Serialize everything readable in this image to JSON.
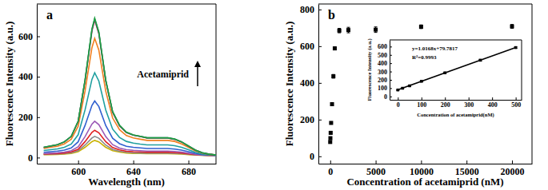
{
  "chart_data": [
    {
      "type": "line",
      "title": "a",
      "x_label": "Wavelength (nm)",
      "y_label": "Fluorescence Intensity (a.u.)",
      "annotations": [
        "Acetamiprid"
      ],
      "x": [
        575,
        580,
        585,
        590,
        595,
        600,
        605,
        610,
        612,
        615,
        620,
        625,
        630,
        635,
        640,
        645,
        650,
        655,
        660,
        665,
        670,
        675,
        680,
        685,
        690,
        695,
        700
      ],
      "series": [
        {
          "color": "#c9b200",
          "values": [
            15,
            15,
            16,
            18,
            21,
            29,
            51,
            79,
            85,
            78,
            51,
            34,
            27,
            23,
            21,
            21,
            20,
            20,
            20,
            20,
            19,
            18,
            15,
            13,
            12,
            11,
            10
          ]
        },
        {
          "color": "#8a8a8a",
          "values": [
            16,
            17,
            18,
            20,
            23,
            34,
            62,
            97,
            105,
            96,
            62,
            40,
            31,
            26,
            24,
            23,
            22,
            22,
            22,
            22,
            21,
            20,
            17,
            14,
            12,
            11,
            10
          ]
        },
        {
          "color": "#e02020",
          "values": [
            18,
            19,
            20,
            23,
            28,
            41,
            79,
            125,
            135,
            123,
            79,
            50,
            38,
            31,
            29,
            28,
            26,
            26,
            26,
            26,
            25,
            23,
            19,
            15,
            13,
            11,
            11
          ]
        },
        {
          "color": "#9b59b6",
          "values": [
            20,
            22,
            24,
            27,
            34,
            53,
            104,
            166,
            180,
            163,
            104,
            64,
            47,
            39,
            36,
            34,
            32,
            32,
            32,
            32,
            30,
            27,
            22,
            17,
            13,
            12,
            11
          ]
        },
        {
          "color": "#3060d0",
          "values": [
            26,
            29,
            32,
            37,
            48,
            78,
            159,
            258,
            280,
            253,
            159,
            96,
            69,
            56,
            51,
            48,
            45,
            45,
            45,
            45,
            42,
            37,
            29,
            21,
            15,
            13,
            11
          ]
        },
        {
          "color": "#20a0a0",
          "values": [
            35,
            39,
            43,
            51,
            67,
            113,
            236,
            387,
            420,
            379,
            236,
            141,
            100,
            80,
            72,
            67,
            63,
            63,
            63,
            63,
            59,
            51,
            39,
            26,
            18,
            14,
            12
          ]
        },
        {
          "color": "#f08020",
          "values": [
            45,
            51,
            56,
            68,
            91,
            155,
            329,
            544,
            590,
            532,
            329,
            196,
            138,
            109,
            97,
            91,
            85,
            85,
            85,
            85,
            80,
            68,
            51,
            33,
            22,
            16,
            13
          ]
        },
        {
          "color": "#e03050",
          "values": [
            50,
            57,
            64,
            77,
            104,
            178,
            379,
            626,
            680,
            613,
            379,
            224,
            157,
            124,
            111,
            104,
            97,
            97,
            97,
            97,
            90,
            77,
            57,
            37,
            23,
            17,
            13
          ]
        },
        {
          "color": "#206080",
          "values": [
            51,
            57,
            64,
            78,
            105,
            179,
            382,
            632,
            686,
            618,
            382,
            226,
            159,
            125,
            111,
            105,
            98,
            98,
            98,
            98,
            91,
            78,
            57,
            37,
            24,
            17,
            13
          ]
        },
        {
          "color": "#20a040",
          "values": [
            51,
            58,
            64,
            78,
            105,
            180,
            384,
            636,
            690,
            622,
            384,
            228,
            160,
            126,
            112,
            105,
            98,
            98,
            98,
            98,
            92,
            78,
            58,
            37,
            24,
            17,
            13
          ]
        }
      ],
      "xlim": [
        570,
        700
      ],
      "xticks": [
        600,
        640,
        680
      ],
      "ylim": [
        -30,
        760
      ],
      "yticks": [
        0,
        200,
        400,
        600
      ]
    },
    {
      "type": "scatter",
      "title": "b",
      "x_label": "Concentration of acetamiprid (nM)",
      "y_label": "Fluorescence Intensity (a.u.)",
      "x": [
        0,
        20,
        50,
        100,
        200,
        350,
        500,
        1000,
        2000,
        5000,
        10000,
        20000
      ],
      "series": [
        {
          "color": "#000000",
          "marker": "square",
          "values": [
            78,
            99,
            128,
            182,
            284,
            436,
            588,
            685,
            688,
            690,
            706,
            708
          ],
          "errors": [
            5,
            6,
            6,
            6,
            8,
            10,
            8,
            12,
            15,
            15,
            10,
            10
          ]
        }
      ],
      "xlim": [
        -1300,
        22200
      ],
      "xticks": [
        0,
        5000,
        10000,
        15000,
        20000
      ],
      "ylim": [
        -40,
        830
      ],
      "yticks": [
        0,
        200,
        400,
        600,
        800
      ]
    },
    {
      "type": "scatter",
      "x_label": "Concentration of acetamiprid(nM)",
      "y_label": "Fluorescence Intensity (a.u.)",
      "annotations": [
        "y=1.0168x+79.7817",
        "R²=0.9993"
      ],
      "series": [
        {
          "type": "scatter",
          "color": "#000000",
          "marker": "square",
          "x": [
            0,
            20,
            50,
            100,
            200,
            350,
            500
          ],
          "values": [
            78,
            99,
            128,
            182,
            284,
            436,
            588
          ],
          "errors": [
            5,
            6,
            6,
            6,
            8,
            10,
            8
          ]
        },
        {
          "type": "line",
          "color": "#000000",
          "x": [
            0,
            500
          ],
          "values": [
            80,
            588
          ]
        }
      ],
      "xlim": [
        -35,
        525
      ],
      "xticks": [
        0,
        100,
        200,
        300,
        400,
        500
      ],
      "ylim": [
        -40,
        680
      ],
      "yticks": [
        0,
        100,
        200,
        300,
        400,
        500,
        600
      ]
    }
  ]
}
